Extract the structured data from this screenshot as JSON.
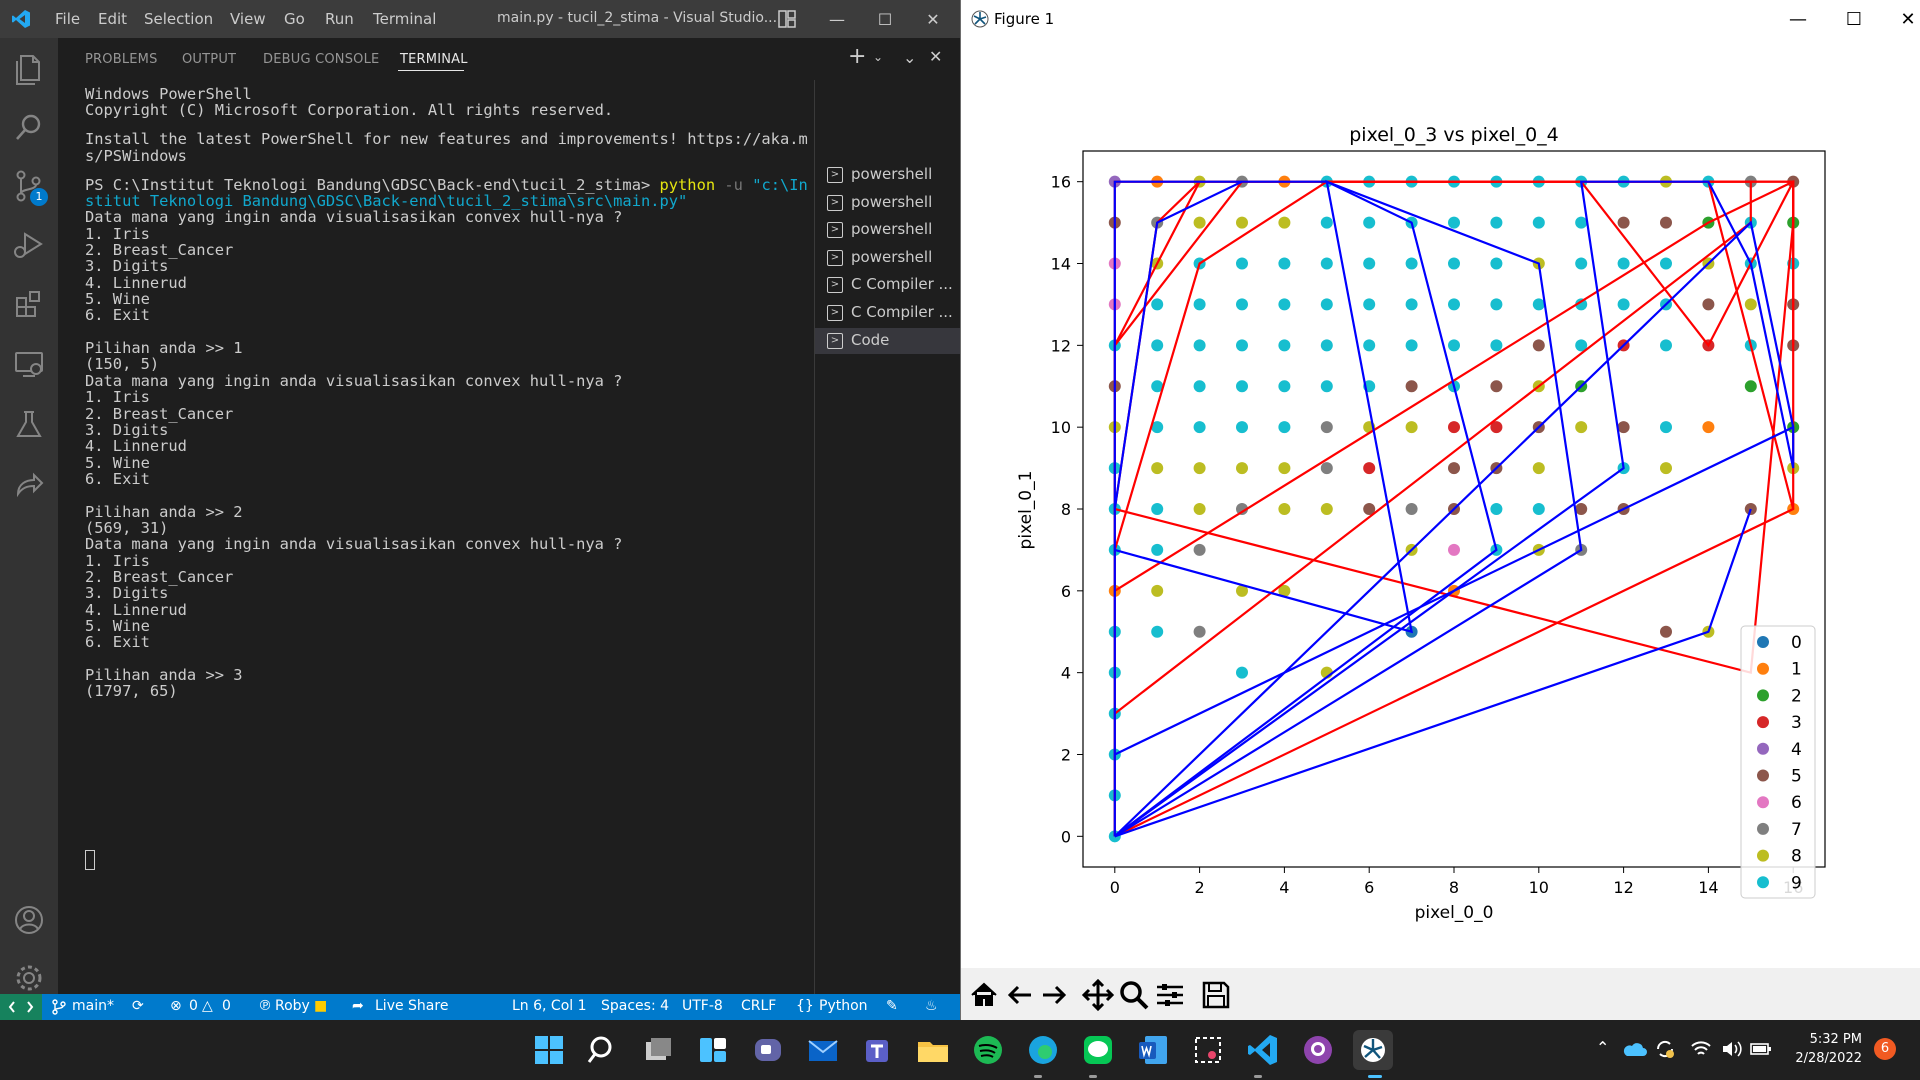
{
  "vscode": {
    "menu": [
      "File",
      "Edit",
      "Selection",
      "View",
      "Go",
      "Run",
      "Terminal"
    ],
    "title": "main.py - tucil_2_stima - Visual Studio...",
    "panel_tabs": [
      "PROBLEMS",
      "OUTPUT",
      "DEBUG CONSOLE",
      "TERMINAL"
    ],
    "active_tab": "TERMINAL",
    "scm_badge": "1",
    "terminal": {
      "lines": [
        "Windows PowerShell",
        "Copyright (C) Microsoft Corporation. All rights reserved.",
        "",
        "Install the latest PowerShell for new features and improvements! https://aka.m",
        "s/PSWindows",
        "",
        "PS C:\\Institut Teknologi Bandung\\GDSC\\Back-end\\tucil_2_stima> ",
        "stitut Teknologi Bandung\\GDSC\\Back-end\\tucil_2_stima\\src\\main.py\"",
        "Data mana yang ingin anda visualisasikan convex hull-nya ?",
        "1. Iris",
        "2. Breast_Cancer",
        "3. Digits",
        "4. Linnerud",
        "5. Wine",
        "6. Exit",
        "",
        "Pilihan anda >> 1",
        "(150, 5)",
        "Data mana yang ingin anda visualisasikan convex hull-nya ?",
        "1. Iris",
        "2. Breast_Cancer",
        "3. Digits",
        "4. Linnerud",
        "5. Wine",
        "6. Exit",
        "",
        "Pilihan anda >> 2",
        "(569, 31)",
        "Data mana yang ingin anda visualisasikan convex hull-nya ?",
        "1. Iris",
        "2. Breast_Cancer",
        "3. Digits",
        "4. Linnerud",
        "5. Wine",
        "6. Exit",
        "",
        "Pilihan anda >> 3",
        "(1797, 65)"
      ],
      "cmd_python": "python",
      "cmd_flag": " -u ",
      "cmd_path": "\"c:\\In"
    },
    "terminal_list": [
      "powershell",
      "powershell",
      "powershell",
      "powershell",
      "C Compiler ...",
      "C Compiler ...",
      "Code"
    ],
    "status": {
      "branch": "main*",
      "errors": "0",
      "warnings": "0",
      "user": "Roby",
      "live_share": "Live Share",
      "position": "Ln 6, Col 1",
      "spaces": "Spaces: 4",
      "encoding": "UTF-8",
      "eol": "CRLF",
      "language": "Python"
    }
  },
  "figure": {
    "title": "Figure 1",
    "toolbar": [
      "home-icon",
      "back-icon",
      "forward-icon",
      "pan-icon",
      "zoom-icon",
      "configure-icon",
      "save-icon"
    ]
  },
  "chart_data": {
    "type": "scatter",
    "title": "pixel_0_3 vs pixel_0_4",
    "xlabel": "pixel_0_0",
    "ylabel": "pixel_0_1",
    "xlim": [
      -0.75,
      16.75
    ],
    "ylim": [
      -0.75,
      16.75
    ],
    "xticks": [
      0,
      2,
      4,
      6,
      8,
      10,
      12,
      14,
      16
    ],
    "yticks": [
      0,
      2,
      4,
      6,
      8,
      10,
      12,
      14,
      16
    ],
    "legend": {
      "position": "lower-right",
      "labels": [
        "0",
        "1",
        "2",
        "3",
        "4",
        "5",
        "6",
        "7",
        "8",
        "9"
      ]
    },
    "colors": [
      "#1f77b4",
      "#ff7f0e",
      "#2ca02c",
      "#d62728",
      "#9467bd",
      "#8c564b",
      "#e377c2",
      "#7f7f7f",
      "#bcbd22",
      "#17becf"
    ],
    "points": [
      [
        0,
        16,
        4
      ],
      [
        1,
        16,
        1
      ],
      [
        2,
        16,
        8
      ],
      [
        3,
        16,
        7
      ],
      [
        4,
        16,
        1
      ],
      [
        5,
        16,
        9
      ],
      [
        6,
        16,
        9
      ],
      [
        7,
        16,
        9
      ],
      [
        8,
        16,
        9
      ],
      [
        9,
        16,
        9
      ],
      [
        10,
        16,
        9
      ],
      [
        11,
        16,
        9
      ],
      [
        12,
        16,
        9
      ],
      [
        13,
        16,
        8
      ],
      [
        14,
        16,
        9
      ],
      [
        15,
        16,
        7
      ],
      [
        16,
        16,
        5
      ],
      [
        0,
        15,
        5
      ],
      [
        1,
        15,
        7
      ],
      [
        2,
        15,
        8
      ],
      [
        3,
        15,
        8
      ],
      [
        4,
        15,
        8
      ],
      [
        5,
        15,
        9
      ],
      [
        6,
        15,
        9
      ],
      [
        7,
        15,
        9
      ],
      [
        8,
        15,
        9
      ],
      [
        9,
        15,
        9
      ],
      [
        10,
        15,
        9
      ],
      [
        11,
        15,
        9
      ],
      [
        12,
        15,
        5
      ],
      [
        13,
        15,
        5
      ],
      [
        14,
        15,
        2
      ],
      [
        15,
        15,
        9
      ],
      [
        16,
        15,
        2
      ],
      [
        0,
        14,
        6
      ],
      [
        1,
        14,
        8
      ],
      [
        2,
        14,
        9
      ],
      [
        3,
        14,
        9
      ],
      [
        4,
        14,
        9
      ],
      [
        5,
        14,
        9
      ],
      [
        6,
        14,
        9
      ],
      [
        7,
        14,
        9
      ],
      [
        8,
        14,
        9
      ],
      [
        9,
        14,
        9
      ],
      [
        10,
        14,
        8
      ],
      [
        11,
        14,
        9
      ],
      [
        12,
        14,
        9
      ],
      [
        13,
        14,
        9
      ],
      [
        14,
        14,
        8
      ],
      [
        15,
        14,
        9
      ],
      [
        16,
        14,
        9
      ],
      [
        0,
        13,
        6
      ],
      [
        1,
        13,
        9
      ],
      [
        2,
        13,
        9
      ],
      [
        3,
        13,
        9
      ],
      [
        4,
        13,
        9
      ],
      [
        5,
        13,
        9
      ],
      [
        6,
        13,
        9
      ],
      [
        7,
        13,
        9
      ],
      [
        8,
        13,
        9
      ],
      [
        9,
        13,
        9
      ],
      [
        10,
        13,
        9
      ],
      [
        11,
        13,
        9
      ],
      [
        12,
        13,
        9
      ],
      [
        13,
        13,
        9
      ],
      [
        14,
        13,
        5
      ],
      [
        15,
        13,
        8
      ],
      [
        16,
        13,
        5
      ],
      [
        0,
        12,
        9
      ],
      [
        1,
        12,
        9
      ],
      [
        2,
        12,
        9
      ],
      [
        3,
        12,
        9
      ],
      [
        4,
        12,
        9
      ],
      [
        5,
        12,
        9
      ],
      [
        6,
        12,
        9
      ],
      [
        7,
        12,
        9
      ],
      [
        8,
        12,
        9
      ],
      [
        9,
        12,
        9
      ],
      [
        10,
        12,
        5
      ],
      [
        11,
        12,
        9
      ],
      [
        12,
        12,
        3
      ],
      [
        13,
        12,
        9
      ],
      [
        14,
        12,
        3
      ],
      [
        15,
        12,
        9
      ],
      [
        16,
        12,
        5
      ],
      [
        0,
        11,
        5
      ],
      [
        1,
        11,
        9
      ],
      [
        2,
        11,
        9
      ],
      [
        3,
        11,
        9
      ],
      [
        4,
        11,
        9
      ],
      [
        5,
        11,
        9
      ],
      [
        6,
        11,
        9
      ],
      [
        7,
        11,
        5
      ],
      [
        8,
        11,
        9
      ],
      [
        9,
        11,
        5
      ],
      [
        10,
        11,
        8
      ],
      [
        11,
        11,
        2
      ],
      [
        15,
        11,
        2
      ],
      [
        0,
        10,
        8
      ],
      [
        1,
        10,
        9
      ],
      [
        2,
        10,
        9
      ],
      [
        3,
        10,
        9
      ],
      [
        4,
        10,
        9
      ],
      [
        5,
        10,
        7
      ],
      [
        6,
        10,
        8
      ],
      [
        7,
        10,
        8
      ],
      [
        8,
        10,
        3
      ],
      [
        9,
        10,
        3
      ],
      [
        10,
        10,
        5
      ],
      [
        11,
        10,
        8
      ],
      [
        12,
        10,
        5
      ],
      [
        13,
        10,
        9
      ],
      [
        14,
        10,
        1
      ],
      [
        16,
        10,
        2
      ],
      [
        0,
        9,
        9
      ],
      [
        1,
        9,
        8
      ],
      [
        2,
        9,
        8
      ],
      [
        3,
        9,
        8
      ],
      [
        4,
        9,
        8
      ],
      [
        5,
        9,
        7
      ],
      [
        6,
        9,
        3
      ],
      [
        8,
        9,
        5
      ],
      [
        9,
        9,
        5
      ],
      [
        10,
        9,
        8
      ],
      [
        12,
        9,
        9
      ],
      [
        13,
        9,
        8
      ],
      [
        16,
        9,
        8
      ],
      [
        0,
        8,
        9
      ],
      [
        1,
        8,
        9
      ],
      [
        2,
        8,
        8
      ],
      [
        3,
        8,
        7
      ],
      [
        4,
        8,
        8
      ],
      [
        5,
        8,
        8
      ],
      [
        6,
        8,
        5
      ],
      [
        7,
        8,
        7
      ],
      [
        8,
        8,
        5
      ],
      [
        9,
        8,
        9
      ],
      [
        10,
        8,
        9
      ],
      [
        11,
        8,
        5
      ],
      [
        12,
        8,
        5
      ],
      [
        15,
        8,
        5
      ],
      [
        16,
        8,
        1
      ],
      [
        0,
        7,
        9
      ],
      [
        1,
        7,
        9
      ],
      [
        2,
        7,
        7
      ],
      [
        7,
        7,
        8
      ],
      [
        8,
        7,
        6
      ],
      [
        9,
        7,
        9
      ],
      [
        10,
        7,
        8
      ],
      [
        11,
        7,
        7
      ],
      [
        0,
        6,
        1
      ],
      [
        1,
        6,
        8
      ],
      [
        3,
        6,
        8
      ],
      [
        4,
        6,
        8
      ],
      [
        8,
        6,
        1
      ],
      [
        0,
        5,
        9
      ],
      [
        1,
        5,
        9
      ],
      [
        2,
        5,
        7
      ],
      [
        7,
        5,
        0
      ],
      [
        13,
        5,
        5
      ],
      [
        14,
        5,
        8
      ],
      [
        0,
        4,
        9
      ],
      [
        3,
        4,
        9
      ],
      [
        5,
        4,
        8
      ],
      [
        0,
        3,
        9
      ],
      [
        0,
        2,
        9
      ],
      [
        0,
        1,
        9
      ],
      [
        0,
        0,
        9
      ]
    ],
    "hull_lines": {
      "red": [
        [
          [
            0,
            0
          ],
          [
            0,
            16
          ],
          [
            16,
            16
          ],
          [
            16,
            8
          ],
          [
            0,
            0
          ]
        ],
        [
          [
            0,
            0
          ],
          [
            0,
            12
          ],
          [
            2,
            16
          ],
          [
            16,
            16
          ],
          [
            16,
            15
          ],
          [
            15,
            4
          ],
          [
            0,
            8
          ]
        ],
        [
          [
            0,
            3
          ],
          [
            15,
            15
          ],
          [
            15,
            16
          ],
          [
            0,
            16
          ]
        ],
        [
          [
            0,
            6
          ],
          [
            14,
            15
          ],
          [
            16,
            16
          ],
          [
            16,
            12
          ]
        ],
        [
          [
            0,
            7
          ],
          [
            2,
            14
          ],
          [
            5,
            16
          ],
          [
            14,
            16
          ],
          [
            16,
            8
          ]
        ],
        [
          [
            0,
            8
          ],
          [
            1,
            15
          ],
          [
            2,
            16
          ]
        ],
        [
          [
            0,
            12
          ],
          [
            3,
            16
          ],
          [
            11,
            16
          ],
          [
            14,
            12
          ],
          [
            16,
            16
          ]
        ]
      ],
      "blue": [
        [
          [
            0,
            0
          ],
          [
            0,
            16
          ],
          [
            5,
            16
          ],
          [
            10,
            14
          ],
          [
            11,
            7
          ],
          [
            0,
            0
          ]
        ],
        [
          [
            0,
            0
          ],
          [
            15,
            15
          ],
          [
            16,
            10
          ],
          [
            16,
            9
          ],
          [
            15,
            14
          ],
          [
            14,
            16
          ],
          [
            11,
            16
          ],
          [
            12,
            9
          ],
          [
            0,
            0
          ]
        ],
        [
          [
            0,
            2
          ],
          [
            16,
            10
          ]
        ],
        [
          [
            0,
            7
          ],
          [
            7,
            5
          ],
          [
            5,
            16
          ],
          [
            7,
            15
          ],
          [
            9,
            7
          ],
          [
            0,
            0
          ]
        ],
        [
          [
            0,
            8
          ],
          [
            1,
            15
          ],
          [
            3,
            16
          ]
        ],
        [
          [
            0,
            0
          ],
          [
            14,
            5
          ],
          [
            15,
            8
          ]
        ]
      ]
    }
  },
  "taskbar": {
    "time": "5:32 PM",
    "date": "2/28/2022",
    "notifications": "6"
  }
}
